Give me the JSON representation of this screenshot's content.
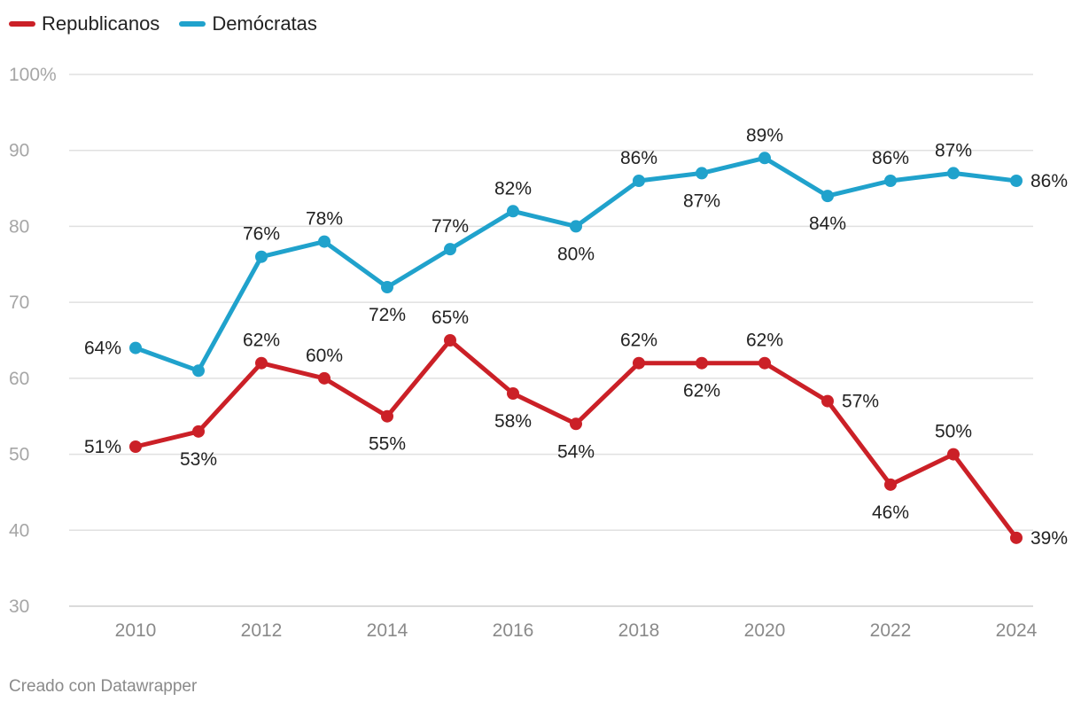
{
  "chart_data": {
    "type": "line",
    "x": [
      2010,
      2011,
      2012,
      2013,
      2014,
      2015,
      2016,
      2017,
      2018,
      2019,
      2020,
      2021,
      2022,
      2023,
      2024
    ],
    "xticks": [
      "2010",
      "2012",
      "2014",
      "2016",
      "2018",
      "2020",
      "2022",
      "2024"
    ],
    "yticks": [
      "100%",
      "90",
      "80",
      "70",
      "60",
      "50",
      "40",
      "30"
    ],
    "ylim": [
      30,
      100
    ],
    "grid": true,
    "legend_position": "top-left",
    "series": [
      {
        "name": "Republicanos",
        "color": "#cb2027",
        "values": [
          51,
          53,
          62,
          60,
          55,
          65,
          58,
          54,
          62,
          62,
          62,
          57,
          46,
          50,
          39
        ],
        "labels": [
          "51%",
          "53%",
          "62%",
          "60%",
          "55%",
          "65%",
          "58%",
          "54%",
          "62%",
          "62%",
          "62%",
          "57%",
          "46%",
          "50%",
          "39%"
        ]
      },
      {
        "name": "Demócratas",
        "color": "#20a2cc",
        "values": [
          64,
          61,
          76,
          78,
          72,
          77,
          82,
          80,
          86,
          87,
          89,
          84,
          86,
          87,
          86
        ],
        "labels": [
          "64%",
          "",
          "76%",
          "78%",
          "72%",
          "77%",
          "82%",
          "80%",
          "86%",
          "87%",
          "89%",
          "84%",
          "86%",
          "87%",
          "86%"
        ]
      }
    ]
  },
  "footer": {
    "credit": "Creado con Datawrapper"
  }
}
